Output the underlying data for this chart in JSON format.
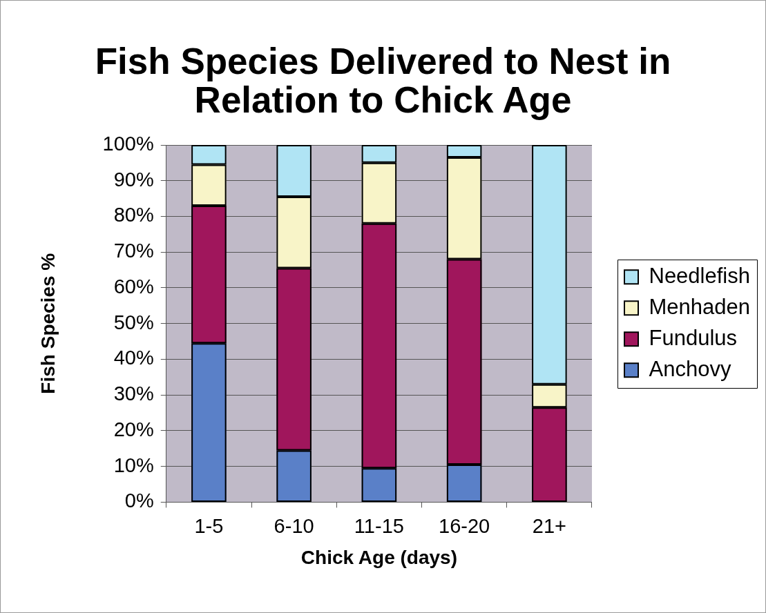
{
  "chart_data": {
    "type": "bar",
    "title": "Fish Species Delivered to Nest in Relation to Chick Age",
    "xlabel": "Chick Age (days)",
    "ylabel": "Fish Species %",
    "categories": [
      "1-5",
      "6-10",
      "11-15",
      "16-20",
      "21+"
    ],
    "stacked": true,
    "series": [
      {
        "name": "Anchovy",
        "color": "#5a80c8",
        "values": [
          44.5,
          14.5,
          9.5,
          10.5,
          0
        ]
      },
      {
        "name": "Fundulus",
        "color": "#a0165c",
        "values": [
          38.5,
          51,
          68.5,
          57.5,
          26.5
        ]
      },
      {
        "name": "Menhaden",
        "color": "#f8f4c8",
        "values": [
          11.5,
          20,
          17,
          28.5,
          6.5
        ]
      },
      {
        "name": "Needlefish",
        "color": "#b0e4f4",
        "values": [
          5.5,
          14.5,
          5,
          3.5,
          67
        ]
      }
    ],
    "ylim": [
      0,
      100
    ],
    "yticks": [
      {
        "value": 0,
        "label": "0%"
      },
      {
        "value": 10,
        "label": "10%"
      },
      {
        "value": 20,
        "label": "20%"
      },
      {
        "value": 30,
        "label": "30%"
      },
      {
        "value": 40,
        "label": "40%"
      },
      {
        "value": 50,
        "label": "50%"
      },
      {
        "value": 60,
        "label": "60%"
      },
      {
        "value": 70,
        "label": "70%"
      },
      {
        "value": 80,
        "label": "80%"
      },
      {
        "value": 90,
        "label": "90%"
      },
      {
        "value": 100,
        "label": "100%"
      }
    ],
    "grid": "y",
    "legend": "right"
  }
}
